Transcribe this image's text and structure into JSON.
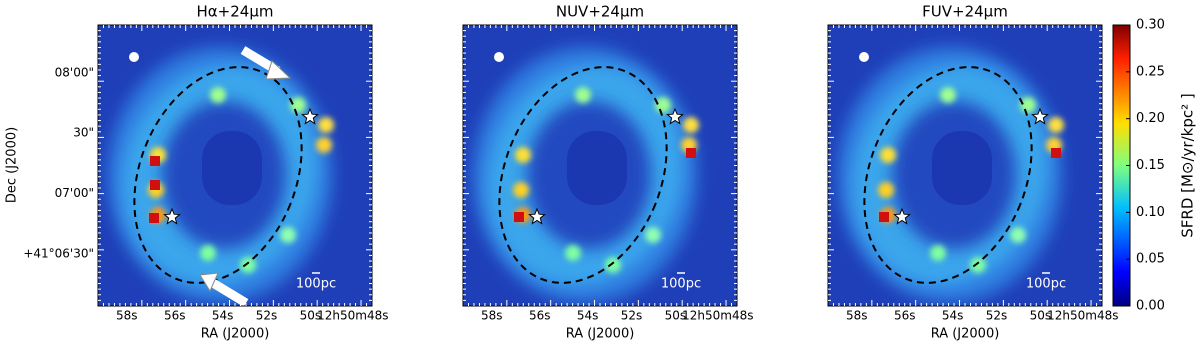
{
  "panels": [
    {
      "title": "Hα+24μm",
      "xlabel": "RA (J2000)",
      "scale_label": "100pc"
    },
    {
      "title": "NUV+24μm",
      "xlabel": "RA (J2000)",
      "scale_label": "100pc"
    },
    {
      "title": "FUV+24μm",
      "xlabel": "RA (J2000)",
      "scale_label": "100pc"
    }
  ],
  "ylabel": "Dec (J2000)",
  "xticks": [
    "58s",
    "56s",
    "54s",
    "52s",
    "50s",
    "12h50m48s"
  ],
  "yticks": [
    "08'00\"",
    "30\"",
    "07'00\"",
    "+41°06'30\""
  ],
  "colorbar": {
    "label": "SFRD [M⊙/yr/kpc² ]",
    "lim": [
      0,
      0.3
    ],
    "ticks": [
      {
        "value": 0,
        "label": "0.00"
      },
      {
        "value": 0.05,
        "label": "0.05"
      },
      {
        "value": 0.1,
        "label": "0.10"
      },
      {
        "value": 0.15,
        "label": "0.15"
      },
      {
        "value": 0.2,
        "label": "0.20"
      },
      {
        "value": 0.25,
        "label": "0.25"
      },
      {
        "value": 0.3,
        "label": "0.30"
      }
    ]
  }
}
